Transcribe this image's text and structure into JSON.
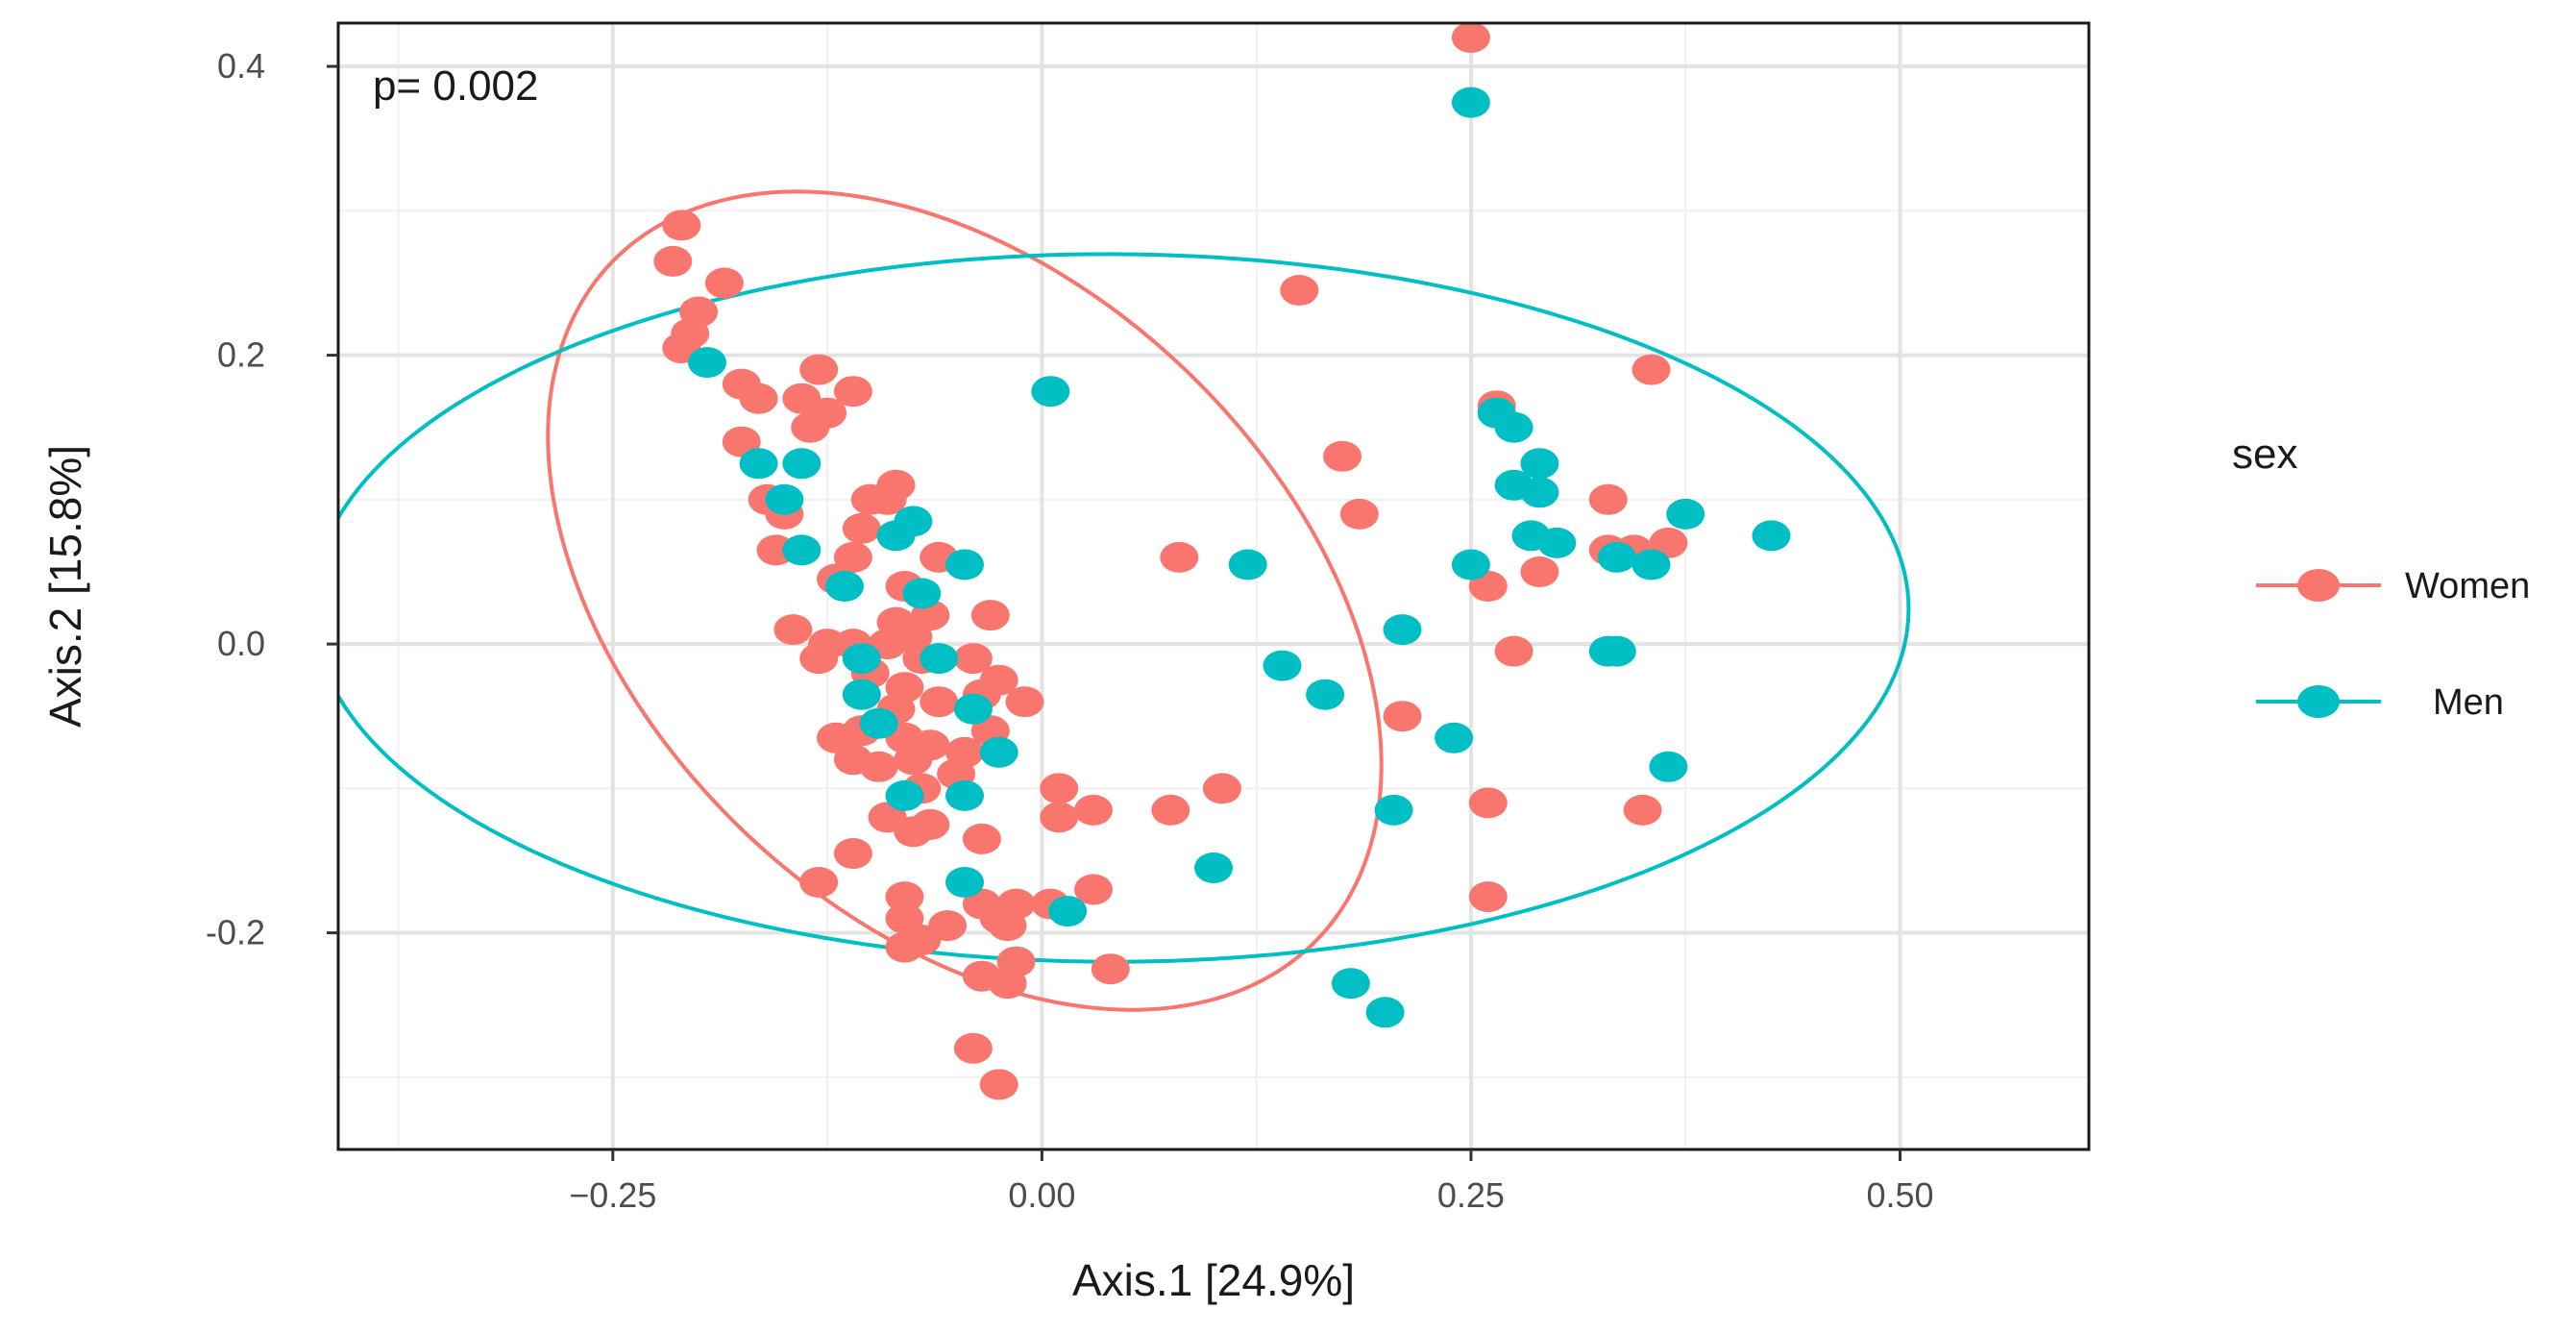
{
  "chart_data": {
    "type": "scatter",
    "title": "",
    "xlabel": "Axis.1   [24.9%]",
    "ylabel": "Axis.2   [15.8%]",
    "xlim": [
      -0.41,
      0.61
    ],
    "ylim": [
      -0.35,
      0.43
    ],
    "xticks": [
      -0.25,
      0.0,
      0.25,
      0.5
    ],
    "xtick_labels": [
      "−0.25",
      "0.00",
      "0.25",
      "0.50"
    ],
    "yticks": [
      -0.2,
      0.0,
      0.2,
      0.4
    ],
    "ytick_labels": [
      "-0.2",
      "0.0",
      "0.2",
      "0.4"
    ],
    "grid": true,
    "annotation": "p= 0.002",
    "legend": {
      "title": "sex",
      "position": "right"
    },
    "series": [
      {
        "name": "Women",
        "color": "#F8766D",
        "ellipse": {
          "center": [
            -0.045,
            0.03
          ],
          "semi_major": 0.315,
          "semi_minor": 0.2,
          "angle_deg": -55.55
        },
        "points": [
          [
            0.25,
            0.42
          ],
          [
            0.15,
            0.245
          ],
          [
            0.355,
            0.19
          ],
          [
            0.265,
            0.165
          ],
          [
            0.175,
            0.13
          ],
          [
            0.185,
            0.09
          ],
          [
            0.33,
            0.1
          ],
          [
            0.08,
            0.06
          ],
          [
            0.26,
            0.04
          ],
          [
            0.33,
            0.065
          ],
          [
            0.345,
            0.065
          ],
          [
            0.365,
            0.07
          ],
          [
            0.29,
            0.05
          ],
          [
            0.275,
            -0.005
          ],
          [
            0.21,
            -0.05
          ],
          [
            0.26,
            -0.11
          ],
          [
            0.35,
            -0.115
          ],
          [
            0.26,
            -0.175
          ],
          [
            0.075,
            -0.115
          ],
          [
            0.105,
            -0.1
          ],
          [
            -0.21,
            0.29
          ],
          [
            -0.215,
            0.265
          ],
          [
            -0.185,
            0.25
          ],
          [
            -0.2,
            0.23
          ],
          [
            -0.205,
            0.215
          ],
          [
            -0.21,
            0.205
          ],
          [
            -0.175,
            0.18
          ],
          [
            -0.165,
            0.17
          ],
          [
            -0.13,
            0.19
          ],
          [
            -0.14,
            0.17
          ],
          [
            -0.11,
            0.175
          ],
          [
            -0.125,
            0.16
          ],
          [
            -0.135,
            0.15
          ],
          [
            -0.175,
            0.14
          ],
          [
            -0.16,
            0.1
          ],
          [
            -0.15,
            0.09
          ],
          [
            -0.155,
            0.065
          ],
          [
            -0.1,
            0.1
          ],
          [
            -0.085,
            0.11
          ],
          [
            -0.09,
            0.1
          ],
          [
            -0.105,
            0.08
          ],
          [
            -0.11,
            0.06
          ],
          [
            -0.12,
            0.045
          ],
          [
            -0.06,
            0.06
          ],
          [
            -0.08,
            0.04
          ],
          [
            -0.065,
            0.02
          ],
          [
            -0.085,
            0.015
          ],
          [
            -0.03,
            0.02
          ],
          [
            -0.145,
            0.01
          ],
          [
            -0.125,
            0.0
          ],
          [
            -0.13,
            -0.01
          ],
          [
            -0.11,
            0.0
          ],
          [
            -0.09,
            0.0
          ],
          [
            -0.075,
            0.005
          ],
          [
            -0.07,
            -0.01
          ],
          [
            -0.04,
            -0.01
          ],
          [
            -0.1,
            -0.02
          ],
          [
            -0.08,
            -0.03
          ],
          [
            -0.085,
            -0.045
          ],
          [
            -0.06,
            -0.04
          ],
          [
            -0.035,
            -0.035
          ],
          [
            -0.025,
            -0.025
          ],
          [
            -0.01,
            -0.04
          ],
          [
            -0.105,
            -0.06
          ],
          [
            -0.12,
            -0.065
          ],
          [
            -0.08,
            -0.065
          ],
          [
            -0.065,
            -0.07
          ],
          [
            -0.045,
            -0.075
          ],
          [
            -0.03,
            -0.06
          ],
          [
            -0.11,
            -0.08
          ],
          [
            -0.095,
            -0.085
          ],
          [
            -0.075,
            -0.08
          ],
          [
            -0.05,
            -0.09
          ],
          [
            -0.07,
            -0.1
          ],
          [
            -0.09,
            -0.12
          ],
          [
            -0.065,
            -0.125
          ],
          [
            -0.075,
            -0.13
          ],
          [
            -0.035,
            -0.135
          ],
          [
            -0.11,
            -0.145
          ],
          [
            -0.13,
            -0.165
          ],
          [
            0.01,
            -0.1
          ],
          [
            0.01,
            -0.12
          ],
          [
            0.03,
            -0.115
          ],
          [
            0.03,
            -0.17
          ],
          [
            -0.08,
            -0.175
          ],
          [
            -0.08,
            -0.19
          ],
          [
            -0.055,
            -0.195
          ],
          [
            -0.07,
            -0.205
          ],
          [
            -0.08,
            -0.21
          ],
          [
            -0.035,
            -0.18
          ],
          [
            -0.025,
            -0.19
          ],
          [
            -0.015,
            -0.18
          ],
          [
            0.005,
            -0.18
          ],
          [
            -0.02,
            -0.195
          ],
          [
            -0.015,
            -0.22
          ],
          [
            -0.035,
            -0.23
          ],
          [
            -0.02,
            -0.235
          ],
          [
            0.04,
            -0.225
          ],
          [
            -0.04,
            -0.28
          ],
          [
            -0.025,
            -0.305
          ]
        ]
      },
      {
        "name": "Men",
        "color": "#00BFC4",
        "ellipse": {
          "center": [
            0.04,
            0.025
          ],
          "semi_major": 0.465,
          "semi_minor": 0.245,
          "angle_deg": -0.13
        },
        "points": [
          [
            0.25,
            0.375
          ],
          [
            0.005,
            0.175
          ],
          [
            -0.195,
            0.195
          ],
          [
            -0.165,
            0.125
          ],
          [
            -0.14,
            0.125
          ],
          [
            -0.15,
            0.1
          ],
          [
            -0.14,
            0.065
          ],
          [
            -0.085,
            0.075
          ],
          [
            -0.075,
            0.085
          ],
          [
            -0.045,
            0.055
          ],
          [
            -0.115,
            0.04
          ],
          [
            -0.07,
            0.035
          ],
          [
            -0.105,
            -0.01
          ],
          [
            -0.06,
            -0.01
          ],
          [
            -0.105,
            -0.035
          ],
          [
            -0.095,
            -0.055
          ],
          [
            -0.04,
            -0.045
          ],
          [
            -0.025,
            -0.075
          ],
          [
            -0.08,
            -0.105
          ],
          [
            -0.045,
            -0.105
          ],
          [
            -0.045,
            -0.165
          ],
          [
            0.015,
            -0.185
          ],
          [
            0.12,
            0.055
          ],
          [
            0.14,
            -0.015
          ],
          [
            0.165,
            -0.035
          ],
          [
            0.21,
            0.01
          ],
          [
            0.24,
            -0.065
          ],
          [
            0.205,
            -0.115
          ],
          [
            0.1,
            -0.155
          ],
          [
            0.18,
            -0.235
          ],
          [
            0.2,
            -0.255
          ],
          [
            0.25,
            0.055
          ],
          [
            0.265,
            0.16
          ],
          [
            0.275,
            0.15
          ],
          [
            0.29,
            0.125
          ],
          [
            0.29,
            0.105
          ],
          [
            0.275,
            0.11
          ],
          [
            0.285,
            0.075
          ],
          [
            0.3,
            0.07
          ],
          [
            0.335,
            0.06
          ],
          [
            0.355,
            0.055
          ],
          [
            0.375,
            0.09
          ],
          [
            0.425,
            0.075
          ],
          [
            0.33,
            -0.005
          ],
          [
            0.335,
            -0.005
          ],
          [
            0.365,
            -0.085
          ]
        ]
      }
    ]
  }
}
